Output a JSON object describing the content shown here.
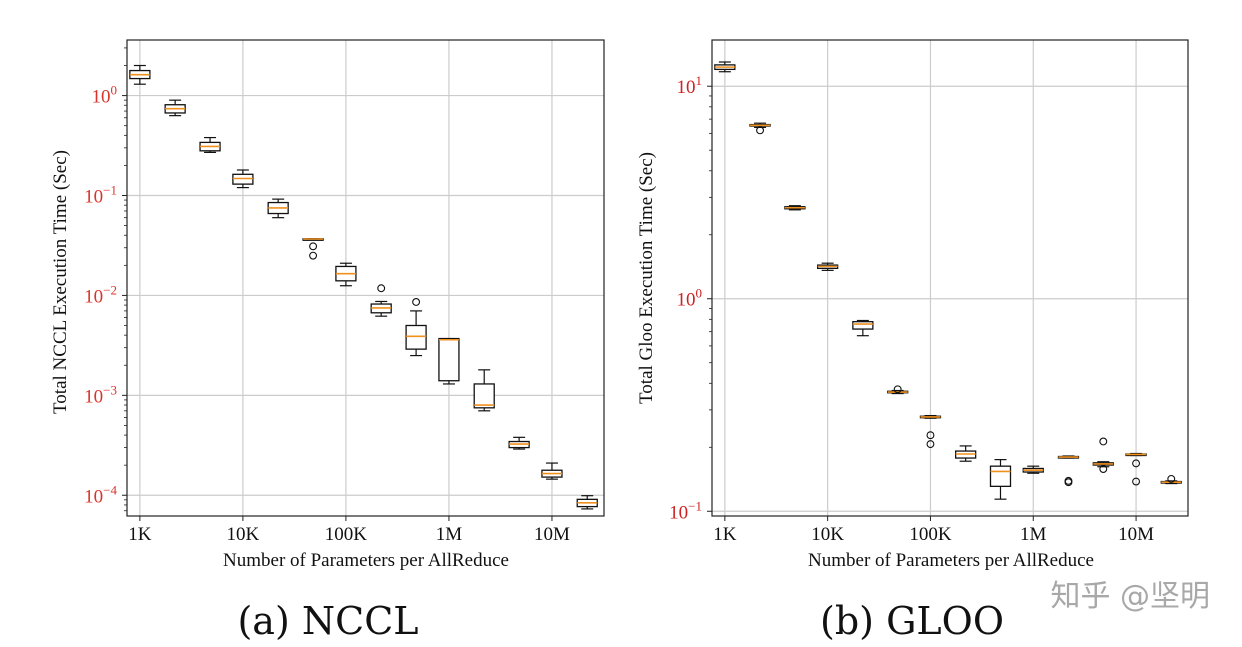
{
  "watermark": "知乎 @坚明",
  "colors": {
    "ytick_a": "#d9332b",
    "ytick_b": "#cc2222",
    "median": "#f0901e",
    "box": "#111111",
    "grid": "#cccccc"
  },
  "chart_data": [
    {
      "type": "box",
      "caption": "(a) NCCL",
      "xlabel": "Number of Parameters per AllReduce",
      "ylabel": "Total NCCL Execution Time (Sec)",
      "xscale": "log",
      "yscale": "log",
      "xlim": [
        750,
        32000000
      ],
      "ylim": [
        6.2e-05,
        3.6
      ],
      "xticks": [
        1000,
        10000,
        100000,
        1000000,
        10000000
      ],
      "xtick_labels": [
        "1K",
        "10K",
        "100K",
        "1M",
        "10M"
      ],
      "yticks": [
        0.0001,
        0.001,
        0.01,
        0.1,
        1
      ],
      "ytick_bases": [
        "10",
        "10",
        "10",
        "10",
        "10"
      ],
      "ytick_exps": [
        "−4",
        "−3",
        "−2",
        "−1",
        "0"
      ],
      "grid": true,
      "boxes": [
        {
          "x": 1000,
          "whislo": 1.3,
          "q1": 1.48,
          "med": 1.62,
          "q3": 1.78,
          "whishi": 2.0,
          "fliers": []
        },
        {
          "x": 2200,
          "whislo": 0.63,
          "q1": 0.67,
          "med": 0.74,
          "q3": 0.81,
          "whishi": 0.9,
          "fliers": []
        },
        {
          "x": 4800,
          "whislo": 0.27,
          "q1": 0.28,
          "med": 0.31,
          "q3": 0.34,
          "whishi": 0.38,
          "fliers": []
        },
        {
          "x": 10000,
          "whislo": 0.12,
          "q1": 0.13,
          "med": 0.148,
          "q3": 0.163,
          "whishi": 0.18,
          "fliers": []
        },
        {
          "x": 22000,
          "whislo": 0.06,
          "q1": 0.066,
          "med": 0.075,
          "q3": 0.085,
          "whishi": 0.092,
          "fliers": []
        },
        {
          "x": 48000,
          "whislo": 0.0365,
          "q1": 0.0365,
          "med": 0.0367,
          "q3": 0.0369,
          "whishi": 0.037,
          "fliers": [
            0.031,
            0.025
          ]
        },
        {
          "x": 100000,
          "whislo": 0.0125,
          "q1": 0.014,
          "med": 0.0165,
          "q3": 0.0195,
          "whishi": 0.021,
          "fliers": []
        },
        {
          "x": 220000,
          "whislo": 0.0062,
          "q1": 0.0067,
          "med": 0.0075,
          "q3": 0.0082,
          "whishi": 0.0087,
          "fliers": [
            0.0118
          ]
        },
        {
          "x": 480000,
          "whislo": 0.0025,
          "q1": 0.0029,
          "med": 0.0039,
          "q3": 0.005,
          "whishi": 0.007,
          "fliers": [
            0.0086
          ]
        },
        {
          "x": 1000000,
          "whislo": 0.0013,
          "q1": 0.0014,
          "med": 0.0036,
          "q3": 0.0037,
          "whishi": 0.0037,
          "fliers": []
        },
        {
          "x": 2200000,
          "whislo": 0.0007,
          "q1": 0.00075,
          "med": 0.0008,
          "q3": 0.0013,
          "whishi": 0.0018,
          "fliers": []
        },
        {
          "x": 4800000,
          "whislo": 0.00029,
          "q1": 0.0003,
          "med": 0.000325,
          "q3": 0.000345,
          "whishi": 0.00038,
          "fliers": []
        },
        {
          "x": 10000000,
          "whislo": 0.000145,
          "q1": 0.000152,
          "med": 0.000165,
          "q3": 0.000178,
          "whishi": 0.00021,
          "fliers": []
        },
        {
          "x": 22000000,
          "whislo": 7.3e-05,
          "q1": 7.7e-05,
          "med": 8.4e-05,
          "q3": 9.1e-05,
          "whishi": 9.9e-05,
          "fliers": []
        }
      ]
    },
    {
      "type": "box",
      "caption": "(b) GLOO",
      "xlabel": "Number of Parameters per AllReduce",
      "ylabel": "Total Gloo Execution Time (Sec)",
      "xscale": "log",
      "yscale": "log",
      "xlim": [
        750,
        32000000
      ],
      "ylim": [
        0.095,
        16.5
      ],
      "xticks": [
        1000,
        10000,
        100000,
        1000000,
        10000000
      ],
      "xtick_labels": [
        "1K",
        "10K",
        "100K",
        "1M",
        "10M"
      ],
      "yticks": [
        0.1,
        1,
        10
      ],
      "ytick_bases": [
        "10",
        "10",
        "10"
      ],
      "ytick_exps": [
        "−1",
        "0",
        "1"
      ],
      "grid": true,
      "boxes": [
        {
          "x": 1000,
          "whislo": 11.7,
          "q1": 12.0,
          "med": 12.3,
          "q3": 12.6,
          "whishi": 13.0,
          "fliers": []
        },
        {
          "x": 2200,
          "whislo": 6.4,
          "q1": 6.5,
          "med": 6.55,
          "q3": 6.6,
          "whishi": 6.7,
          "fliers": [
            6.2
          ]
        },
        {
          "x": 4800,
          "whislo": 2.62,
          "q1": 2.65,
          "med": 2.68,
          "q3": 2.71,
          "whishi": 2.74,
          "fliers": []
        },
        {
          "x": 10000,
          "whislo": 1.36,
          "q1": 1.39,
          "med": 1.42,
          "q3": 1.44,
          "whishi": 1.47,
          "fliers": []
        },
        {
          "x": 22000,
          "whislo": 0.67,
          "q1": 0.72,
          "med": 0.76,
          "q3": 0.78,
          "whishi": 0.79,
          "fliers": []
        },
        {
          "x": 48000,
          "whislo": 0.358,
          "q1": 0.361,
          "med": 0.364,
          "q3": 0.367,
          "whishi": 0.37,
          "fliers": [
            0.375
          ]
        },
        {
          "x": 100000,
          "whislo": 0.274,
          "q1": 0.276,
          "med": 0.278,
          "q3": 0.28,
          "whishi": 0.282,
          "fliers": [
            0.228,
            0.207
          ]
        },
        {
          "x": 220000,
          "whislo": 0.172,
          "q1": 0.178,
          "med": 0.186,
          "q3": 0.192,
          "whishi": 0.203,
          "fliers": []
        },
        {
          "x": 480000,
          "whislo": 0.114,
          "q1": 0.131,
          "med": 0.154,
          "q3": 0.163,
          "whishi": 0.175,
          "fliers": []
        },
        {
          "x": 1000000,
          "whislo": 0.151,
          "q1": 0.153,
          "med": 0.156,
          "q3": 0.159,
          "whishi": 0.163,
          "fliers": []
        },
        {
          "x": 2200000,
          "whislo": 0.178,
          "q1": 0.179,
          "med": 0.18,
          "q3": 0.181,
          "whishi": 0.182,
          "fliers": [
            0.139,
            0.137
          ]
        },
        {
          "x": 4800000,
          "whislo": 0.162,
          "q1": 0.165,
          "med": 0.167,
          "q3": 0.169,
          "whishi": 0.171,
          "fliers": [
            0.213,
            0.158
          ]
        },
        {
          "x": 10000000,
          "whislo": 0.183,
          "q1": 0.184,
          "med": 0.185,
          "q3": 0.186,
          "whishi": 0.187,
          "fliers": [
            0.168,
            0.138
          ]
        },
        {
          "x": 22000000,
          "whislo": 0.135,
          "q1": 0.136,
          "med": 0.137,
          "q3": 0.138,
          "whishi": 0.139,
          "fliers": [
            0.142
          ]
        }
      ]
    }
  ]
}
